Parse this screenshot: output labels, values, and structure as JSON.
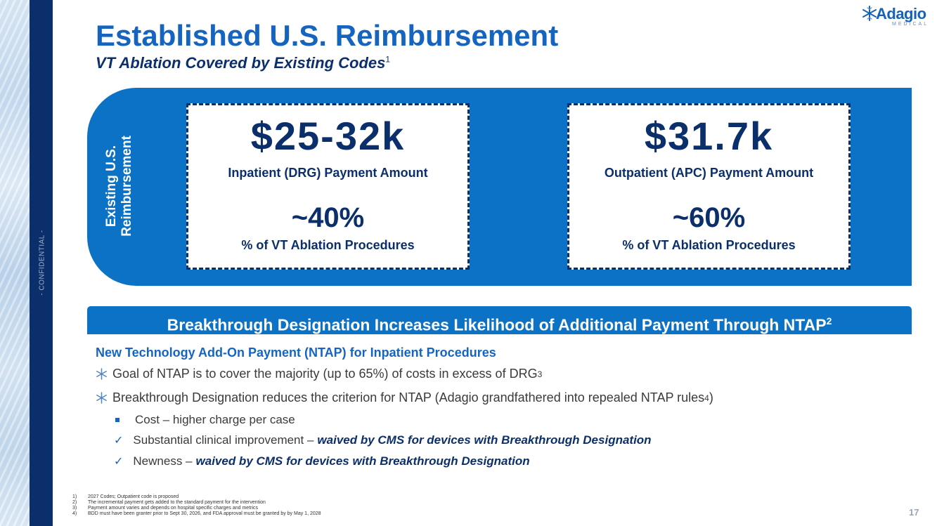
{
  "sidebar": {
    "confidential": "- CONFIDENTIAL -"
  },
  "logo": {
    "name": "Adagio",
    "subtext": "MEDICAL",
    "icon": "snowflake-icon"
  },
  "header": {
    "title": "Established U.S. Reimbursement",
    "subtitle": "VT Ablation Covered by Existing Codes",
    "subtitle_ref": "1"
  },
  "reimbursement": {
    "side_label_line1": "Existing U.S.",
    "side_label_line2": "Reimbursement",
    "inpatient": {
      "amount": "$25-32k",
      "label": "Inpatient (DRG) Payment Amount",
      "share": "~40%",
      "share_label": "% of VT Ablation Procedures"
    },
    "outpatient": {
      "amount": "$31.7k",
      "label": "Outpatient (APC) Payment Amount",
      "share": "~60%",
      "share_label": "% of VT Ablation Procedures"
    }
  },
  "ntap": {
    "banner": "Breakthrough Designation Increases Likelihood of Additional Payment Through NTAP",
    "banner_ref": "2",
    "heading": "New Technology Add-On Payment (NTAP) for Inpatient Procedures",
    "bullet1": "Goal of NTAP is to cover the majority (up to 65%) of costs in excess of DRG",
    "bullet1_ref": "3",
    "bullet2": "Breakthrough Designation reduces the criterion for NTAP  (Adagio grandfathered into repealed NTAP rules",
    "bullet2_ref": "4",
    "bullet2_end": ")",
    "sub1": "Cost – higher charge per case",
    "sub2": "Substantial clinical improvement –",
    "sub2_emph": "waived by CMS for devices with Breakthrough Designation",
    "sub3": "Newness –",
    "sub3_emph": "waived by CMS for devices with Breakthrough Designation"
  },
  "footnotes": [
    {
      "num": "1)",
      "text": "2027 Codes; Outpatient code is proposed"
    },
    {
      "num": "2)",
      "text": "The incremental payment gets added to the standard payment for the intervention"
    },
    {
      "num": "3)",
      "text": "Payment amount varies and depends on hospital specific charges and metrics"
    },
    {
      "num": "4)",
      "text": "BDD must have been granter prior to Sept 30, 2026, and FDA approval must be granted by by May 1, 2028"
    }
  ],
  "page_number": "17",
  "colors": {
    "brand_blue": "#1565c0",
    "navy": "#0b2f6b",
    "band_blue": "#0b72c5"
  }
}
